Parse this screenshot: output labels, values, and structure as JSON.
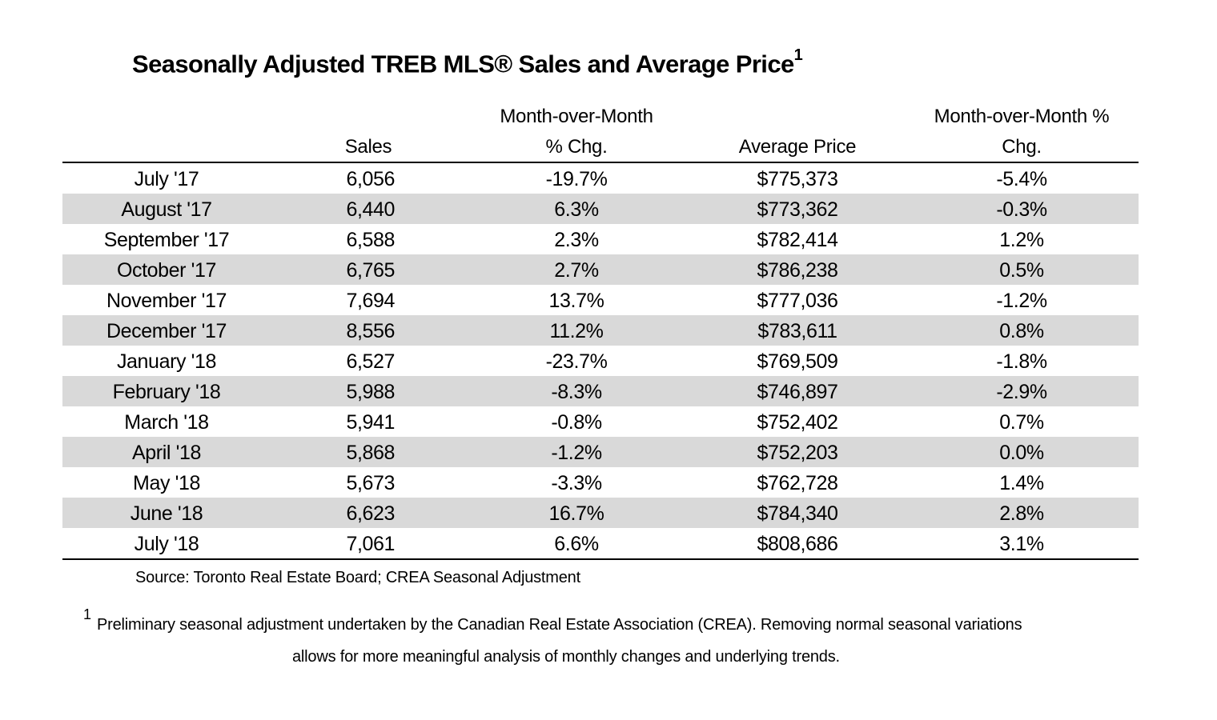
{
  "title": "Seasonally Adjusted TREB MLS® Sales and Average Price",
  "title_footnote_mark": "1",
  "columns": {
    "sales": "Sales",
    "mom_line1": "Month-over-Month",
    "mom_line2": "% Chg.",
    "avg_price": "Average Price",
    "mom_price_line1": "Month-over-Month %",
    "mom_price_line2": "Chg."
  },
  "rows": [
    {
      "month": "July '17",
      "sales": "6,056",
      "sales_chg": "-19.7%",
      "avg_price": "$775,373",
      "price_chg": "-5.4%"
    },
    {
      "month": "August '17",
      "sales": "6,440",
      "sales_chg": "6.3%",
      "avg_price": "$773,362",
      "price_chg": "-0.3%"
    },
    {
      "month": "September '17",
      "sales": "6,588",
      "sales_chg": "2.3%",
      "avg_price": "$782,414",
      "price_chg": "1.2%"
    },
    {
      "month": "October '17",
      "sales": "6,765",
      "sales_chg": "2.7%",
      "avg_price": "$786,238",
      "price_chg": "0.5%"
    },
    {
      "month": "November '17",
      "sales": "7,694",
      "sales_chg": "13.7%",
      "avg_price": "$777,036",
      "price_chg": "-1.2%"
    },
    {
      "month": "December '17",
      "sales": "8,556",
      "sales_chg": "11.2%",
      "avg_price": "$783,611",
      "price_chg": "0.8%"
    },
    {
      "month": "January '18",
      "sales": "6,527",
      "sales_chg": "-23.7%",
      "avg_price": "$769,509",
      "price_chg": "-1.8%"
    },
    {
      "month": "February '18",
      "sales": "5,988",
      "sales_chg": "-8.3%",
      "avg_price": "$746,897",
      "price_chg": "-2.9%"
    },
    {
      "month": "March '18",
      "sales": "5,941",
      "sales_chg": "-0.8%",
      "avg_price": "$752,402",
      "price_chg": "0.7%"
    },
    {
      "month": "April '18",
      "sales": "5,868",
      "sales_chg": "-1.2%",
      "avg_price": "$752,203",
      "price_chg": "0.0%"
    },
    {
      "month": "May '18",
      "sales": "5,673",
      "sales_chg": "-3.3%",
      "avg_price": "$762,728",
      "price_chg": "1.4%"
    },
    {
      "month": "June '18",
      "sales": "6,623",
      "sales_chg": "16.7%",
      "avg_price": "$784,340",
      "price_chg": "2.8%"
    },
    {
      "month": "July '18",
      "sales": "7,061",
      "sales_chg": "6.6%",
      "avg_price": "$808,686",
      "price_chg": "3.1%"
    }
  ],
  "source": "Source: Toronto Real Estate Board; CREA Seasonal Adjustment",
  "footnote": {
    "mark": "1",
    "line1": "Preliminary seasonal adjustment undertaken by the Canadian Real Estate Association (CREA).  Removing normal seasonal variations",
    "line2": "allows for more meaningful analysis of monthly changes and underlying trends."
  },
  "colors": {
    "stripe": "#d9d9d9",
    "text": "#000000"
  }
}
